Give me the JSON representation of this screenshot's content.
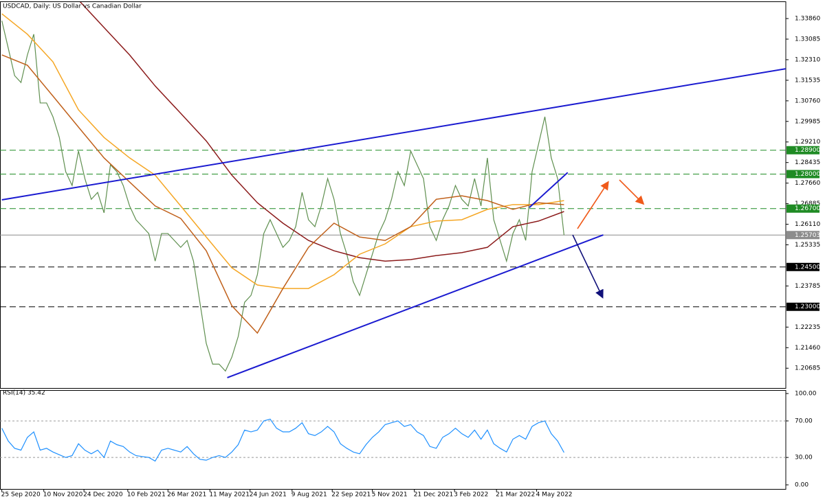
{
  "chart_data": [
    {
      "type": "line",
      "title": "USDCAD, Daily:  US Dollar vs Canadian Dollar",
      "x": [
        "2020-09-25",
        "2020-10-02",
        "2020-10-09",
        "2020-10-16",
        "2020-10-23",
        "2020-10-30",
        "2020-11-06",
        "2020-11-13",
        "2020-11-20",
        "2020-11-27",
        "2020-12-04",
        "2020-12-11",
        "2020-12-18",
        "2020-12-25",
        "2021-01-01",
        "2021-01-08",
        "2021-01-15",
        "2021-01-22",
        "2021-01-29",
        "2021-02-05",
        "2021-02-12",
        "2021-02-19",
        "2021-02-26",
        "2021-03-05",
        "2021-03-12",
        "2021-03-19",
        "2021-03-26",
        "2021-04-02",
        "2021-04-09",
        "2021-04-16",
        "2021-04-23",
        "2021-04-30",
        "2021-05-07",
        "2021-05-14",
        "2021-05-21",
        "2021-05-28",
        "2021-06-04",
        "2021-06-11",
        "2021-06-18",
        "2021-06-25",
        "2021-07-02",
        "2021-07-09",
        "2021-07-16",
        "2021-07-23",
        "2021-07-30",
        "2021-08-06",
        "2021-08-13",
        "2021-08-20",
        "2021-08-27",
        "2021-09-03",
        "2021-09-10",
        "2021-09-17",
        "2021-09-24",
        "2021-10-01",
        "2021-10-08",
        "2021-10-15",
        "2021-10-22",
        "2021-10-29",
        "2021-11-05",
        "2021-11-12",
        "2021-11-19",
        "2021-11-26",
        "2021-12-03",
        "2021-12-10",
        "2021-12-17",
        "2021-12-24",
        "2021-12-31",
        "2022-01-07",
        "2022-01-14",
        "2022-01-21",
        "2022-01-28",
        "2022-02-04",
        "2022-02-11",
        "2022-02-18",
        "2022-02-25",
        "2022-03-04",
        "2022-03-11",
        "2022-03-18",
        "2022-03-25",
        "2022-04-01",
        "2022-04-08",
        "2022-04-15",
        "2022-04-22",
        "2022-04-29",
        "2022-05-06",
        "2022-05-13",
        "2022-05-20",
        "2022-05-27",
        "2022-06-03"
      ],
      "xlim": [
        "2020-09-23",
        "2023-02-01"
      ],
      "xticks": [
        {
          "value": "2020-09-25",
          "label": "25 Sep 2020"
        },
        {
          "value": "2020-11-10",
          "label": "10 Nov 2020"
        },
        {
          "value": "2020-12-24",
          "label": "24 Dec 2020"
        },
        {
          "value": "2021-02-10",
          "label": "10 Feb 2021"
        },
        {
          "value": "2021-03-26",
          "label": "26 Mar 2021"
        },
        {
          "value": "2021-05-11",
          "label": "11 May 2021"
        },
        {
          "value": "2021-06-24",
          "label": "24 Jun 2021"
        },
        {
          "value": "2021-08-09",
          "label": "9 Aug 2021"
        },
        {
          "value": "2021-09-22",
          "label": "22 Sep 2021"
        },
        {
          "value": "2021-11-05",
          "label": "5 Nov 2021"
        },
        {
          "value": "2021-12-21",
          "label": "21 Dec 2021"
        },
        {
          "value": "2022-02-03",
          "label": "3 Feb 2022"
        },
        {
          "value": "2022-03-21",
          "label": "21 Mar 2022"
        },
        {
          "value": "2022-05-04",
          "label": "4 May 2022"
        }
      ],
      "ylim": [
        1.1994,
        1.3443
      ],
      "yticks": [
        {
          "value": 1.3386,
          "label": "1.33860"
        },
        {
          "value": 1.33085,
          "label": "1.33085"
        },
        {
          "value": 1.3231,
          "label": "1.32310"
        },
        {
          "value": 1.31535,
          "label": "1.31535"
        },
        {
          "value": 1.3076,
          "label": "1.30760"
        },
        {
          "value": 1.29985,
          "label": "1.29985"
        },
        {
          "value": 1.2921,
          "label": "1.29210"
        },
        {
          "value": 1.28435,
          "label": "1.28435"
        },
        {
          "value": 1.2766,
          "label": "1.27660"
        },
        {
          "value": 1.26885,
          "label": "1.26885"
        },
        {
          "value": 1.2611,
          "label": "1.26110"
        },
        {
          "value": 1.25335,
          "label": "1.25335"
        },
        {
          "value": 1.23785,
          "label": "1.23785"
        },
        {
          "value": 1.22235,
          "label": "1.22235"
        },
        {
          "value": 1.2146,
          "label": "1.21460"
        },
        {
          "value": 1.20685,
          "label": "1.20685"
        }
      ],
      "series": [
        {
          "color": "#5f8f4f",
          "values": [
            1.3378,
            1.3275,
            1.3171,
            1.3145,
            1.3249,
            1.3327,
            1.3068,
            1.3068,
            1.3016,
            1.2938,
            1.2809,
            1.2757,
            1.2887,
            1.2783,
            1.2705,
            1.2731,
            1.2654,
            1.2835,
            1.2809,
            1.2757,
            1.268,
            1.2628,
            1.2602,
            1.2576,
            1.2472,
            1.2576,
            1.2576,
            1.255,
            1.2524,
            1.255,
            1.2472,
            1.2317,
            1.2162,
            1.2084,
            1.2084,
            1.2058,
            1.211,
            1.2188,
            1.2317,
            1.2343,
            1.2421,
            1.2576,
            1.2628,
            1.2576,
            1.2524,
            1.255,
            1.2602,
            1.2731,
            1.2628,
            1.2602,
            1.268,
            1.2783,
            1.2705,
            1.2576,
            1.2498,
            1.2395,
            1.2343,
            1.2421,
            1.2498,
            1.2576,
            1.2628,
            1.2705,
            1.2809,
            1.2757,
            1.2887,
            1.2835,
            1.2783,
            1.2602,
            1.255,
            1.2628,
            1.268,
            1.2757,
            1.2705,
            1.268,
            1.2783,
            1.268,
            1.2861,
            1.2628,
            1.255,
            1.2472,
            1.2576,
            1.2628,
            1.255,
            1.2809,
            1.2912,
            1.3016,
            1.2861,
            1.2783,
            1.257
          ]
        },
        {
          "color": "#8b1a1a",
          "x": [
            "2020-09-25",
            "2020-10-23",
            "2020-11-20",
            "2020-12-18",
            "2021-01-15",
            "2021-02-12",
            "2021-03-12",
            "2021-04-09",
            "2021-05-07",
            "2021-06-04",
            "2021-07-02",
            "2021-07-30",
            "2021-08-27",
            "2021-09-24",
            "2021-10-22",
            "2021-11-19",
            "2021-12-17",
            "2022-01-14",
            "2022-02-11",
            "2022-03-11",
            "2022-04-08",
            "2022-05-06",
            "2022-06-03"
          ],
          "values": [
            null,
            null,
            null,
            1.3456,
            1.3352,
            1.3249,
            1.3132,
            1.3029,
            1.2925,
            1.2796,
            1.2692,
            1.2615,
            1.255,
            1.2511,
            1.2485,
            1.2472,
            1.2478,
            1.2493,
            1.2504,
            1.2524,
            1.2602,
            1.2623,
            1.2659
          ]
        },
        {
          "color": "#f5a623",
          "x": [
            "2020-09-25",
            "2020-10-23",
            "2020-11-20",
            "2020-12-18",
            "2021-01-15",
            "2021-02-12",
            "2021-03-12",
            "2021-04-09",
            "2021-05-07",
            "2021-06-04",
            "2021-07-02",
            "2021-07-30",
            "2021-08-27",
            "2021-09-24",
            "2021-10-22",
            "2021-11-19",
            "2021-12-17",
            "2022-01-14",
            "2022-02-11",
            "2022-03-11",
            "2022-04-08",
            "2022-05-06",
            "2022-06-03"
          ],
          "values": [
            1.3404,
            1.3327,
            1.3223,
            1.3042,
            1.2938,
            1.2861,
            1.2796,
            1.268,
            1.2563,
            1.2447,
            1.2382,
            1.2369,
            1.2369,
            1.2421,
            1.2498,
            1.2537,
            1.2602,
            1.2623,
            1.2628,
            1.2667,
            1.2685,
            1.2685,
            1.27
          ]
        },
        {
          "color": "#c0601a",
          "x": [
            "2020-09-25",
            "2020-10-23",
            "2020-11-20",
            "2020-12-18",
            "2021-01-15",
            "2021-02-12",
            "2021-03-12",
            "2021-04-09",
            "2021-05-07",
            "2021-06-04",
            "2021-07-02",
            "2021-07-30",
            "2021-08-27",
            "2021-09-24",
            "2021-10-22",
            "2021-11-19",
            "2021-12-17",
            "2022-01-14",
            "2022-02-11",
            "2022-03-11",
            "2022-04-08",
            "2022-05-06",
            "2022-06-03"
          ],
          "values": [
            1.3249,
            1.321,
            1.3094,
            1.2977,
            1.2861,
            1.277,
            1.268,
            1.2633,
            1.2511,
            1.2304,
            1.2201,
            1.2369,
            1.2524,
            1.2615,
            1.2563,
            1.255,
            1.2602,
            1.2705,
            1.2718,
            1.27,
            1.2667,
            1.2692,
            1.2685
          ]
        }
      ],
      "levels": [
        {
          "value": 1.289,
          "label": "1.28900",
          "color": "#1f8b24",
          "style": "dashed"
        },
        {
          "value": 1.28,
          "label": "1.28000",
          "color": "#1f8b24",
          "style": "dashed"
        },
        {
          "value": 1.267,
          "label": "1.26700",
          "color": "#1f8b24",
          "style": "dashed"
        },
        {
          "value": 1.25703,
          "label": "1.25703",
          "color": "#8c8c8c",
          "style": "solid"
        },
        {
          "value": 1.245,
          "label": "1.24500",
          "color": "#000000",
          "style": "dashed"
        },
        {
          "value": 1.23,
          "label": "1.23000",
          "color": "#000000",
          "style": "dashed"
        }
      ],
      "trendlines": [
        {
          "color": "#1a1ad0",
          "start": {
            "x": "2020-09-25",
            "y": 1.2703
          },
          "end": {
            "x": "2023-02-01",
            "y": 1.3197
          }
        },
        {
          "color": "#1a1ad0",
          "start": {
            "x": "2021-05-30",
            "y": 1.2033
          },
          "end": {
            "x": "2022-07-16",
            "y": 1.2571
          }
        },
        {
          "color": "#1a1ad0",
          "start": {
            "x": "2022-04-26",
            "y": 1.2674
          },
          "end": {
            "x": "2022-06-07",
            "y": 1.2806
          }
        }
      ]
    },
    {
      "type": "line",
      "title": "RSI(14) 35.42",
      "x": [
        "2020-09-25",
        "2020-10-02",
        "2020-10-09",
        "2020-10-16",
        "2020-10-23",
        "2020-10-30",
        "2020-11-06",
        "2020-11-13",
        "2020-11-20",
        "2020-11-27",
        "2020-12-04",
        "2020-12-11",
        "2020-12-18",
        "2020-12-25",
        "2021-01-01",
        "2021-01-08",
        "2021-01-15",
        "2021-01-22",
        "2021-01-29",
        "2021-02-05",
        "2021-02-12",
        "2021-02-19",
        "2021-02-26",
        "2021-03-05",
        "2021-03-12",
        "2021-03-19",
        "2021-03-26",
        "2021-04-02",
        "2021-04-09",
        "2021-04-16",
        "2021-04-23",
        "2021-04-30",
        "2021-05-07",
        "2021-05-14",
        "2021-05-21",
        "2021-05-28",
        "2021-06-04",
        "2021-06-11",
        "2021-06-18",
        "2021-06-25",
        "2021-07-02",
        "2021-07-09",
        "2021-07-16",
        "2021-07-23",
        "2021-07-30",
        "2021-08-06",
        "2021-08-13",
        "2021-08-20",
        "2021-08-27",
        "2021-09-03",
        "2021-09-10",
        "2021-09-17",
        "2021-09-24",
        "2021-10-01",
        "2021-10-08",
        "2021-10-15",
        "2021-10-22",
        "2021-10-29",
        "2021-11-05",
        "2021-11-12",
        "2021-11-19",
        "2021-11-26",
        "2021-12-03",
        "2021-12-10",
        "2021-12-17",
        "2021-12-24",
        "2021-12-31",
        "2022-01-07",
        "2022-01-14",
        "2022-01-21",
        "2022-01-28",
        "2022-02-04",
        "2022-02-11",
        "2022-02-18",
        "2022-02-25",
        "2022-03-04",
        "2022-03-11",
        "2022-03-18",
        "2022-03-25",
        "2022-04-01",
        "2022-04-08",
        "2022-04-15",
        "2022-04-22",
        "2022-04-29",
        "2022-05-06",
        "2022-05-13",
        "2022-05-20",
        "2022-05-27",
        "2022-06-03"
      ],
      "xlim": [
        "2020-09-23",
        "2023-02-01"
      ],
      "ylim": [
        -4.5,
        103.8
      ],
      "yticks": [
        {
          "value": 100,
          "label": "100.00"
        },
        {
          "value": 70,
          "label": "70.00"
        },
        {
          "value": 30,
          "label": "30.00"
        },
        {
          "value": 0,
          "label": "0.00"
        }
      ],
      "levels": [
        70,
        30
      ],
      "series": [
        {
          "color": "#1e90ff",
          "values": [
            62,
            48,
            40,
            38,
            52,
            58,
            38,
            40,
            36,
            33,
            30,
            32,
            45,
            38,
            34,
            38,
            30,
            48,
            44,
            42,
            36,
            32,
            31,
            30,
            26,
            38,
            40,
            38,
            36,
            42,
            34,
            28,
            27,
            30,
            32,
            30,
            36,
            44,
            60,
            58,
            60,
            70,
            72,
            62,
            58,
            58,
            62,
            68,
            56,
            54,
            58,
            64,
            58,
            45,
            40,
            36,
            34,
            44,
            52,
            58,
            66,
            68,
            70,
            64,
            66,
            58,
            54,
            42,
            40,
            52,
            56,
            62,
            56,
            52,
            60,
            50,
            60,
            45,
            40,
            36,
            50,
            54,
            50,
            64,
            68,
            70,
            56,
            48,
            35.42
          ]
        }
      ]
    }
  ]
}
